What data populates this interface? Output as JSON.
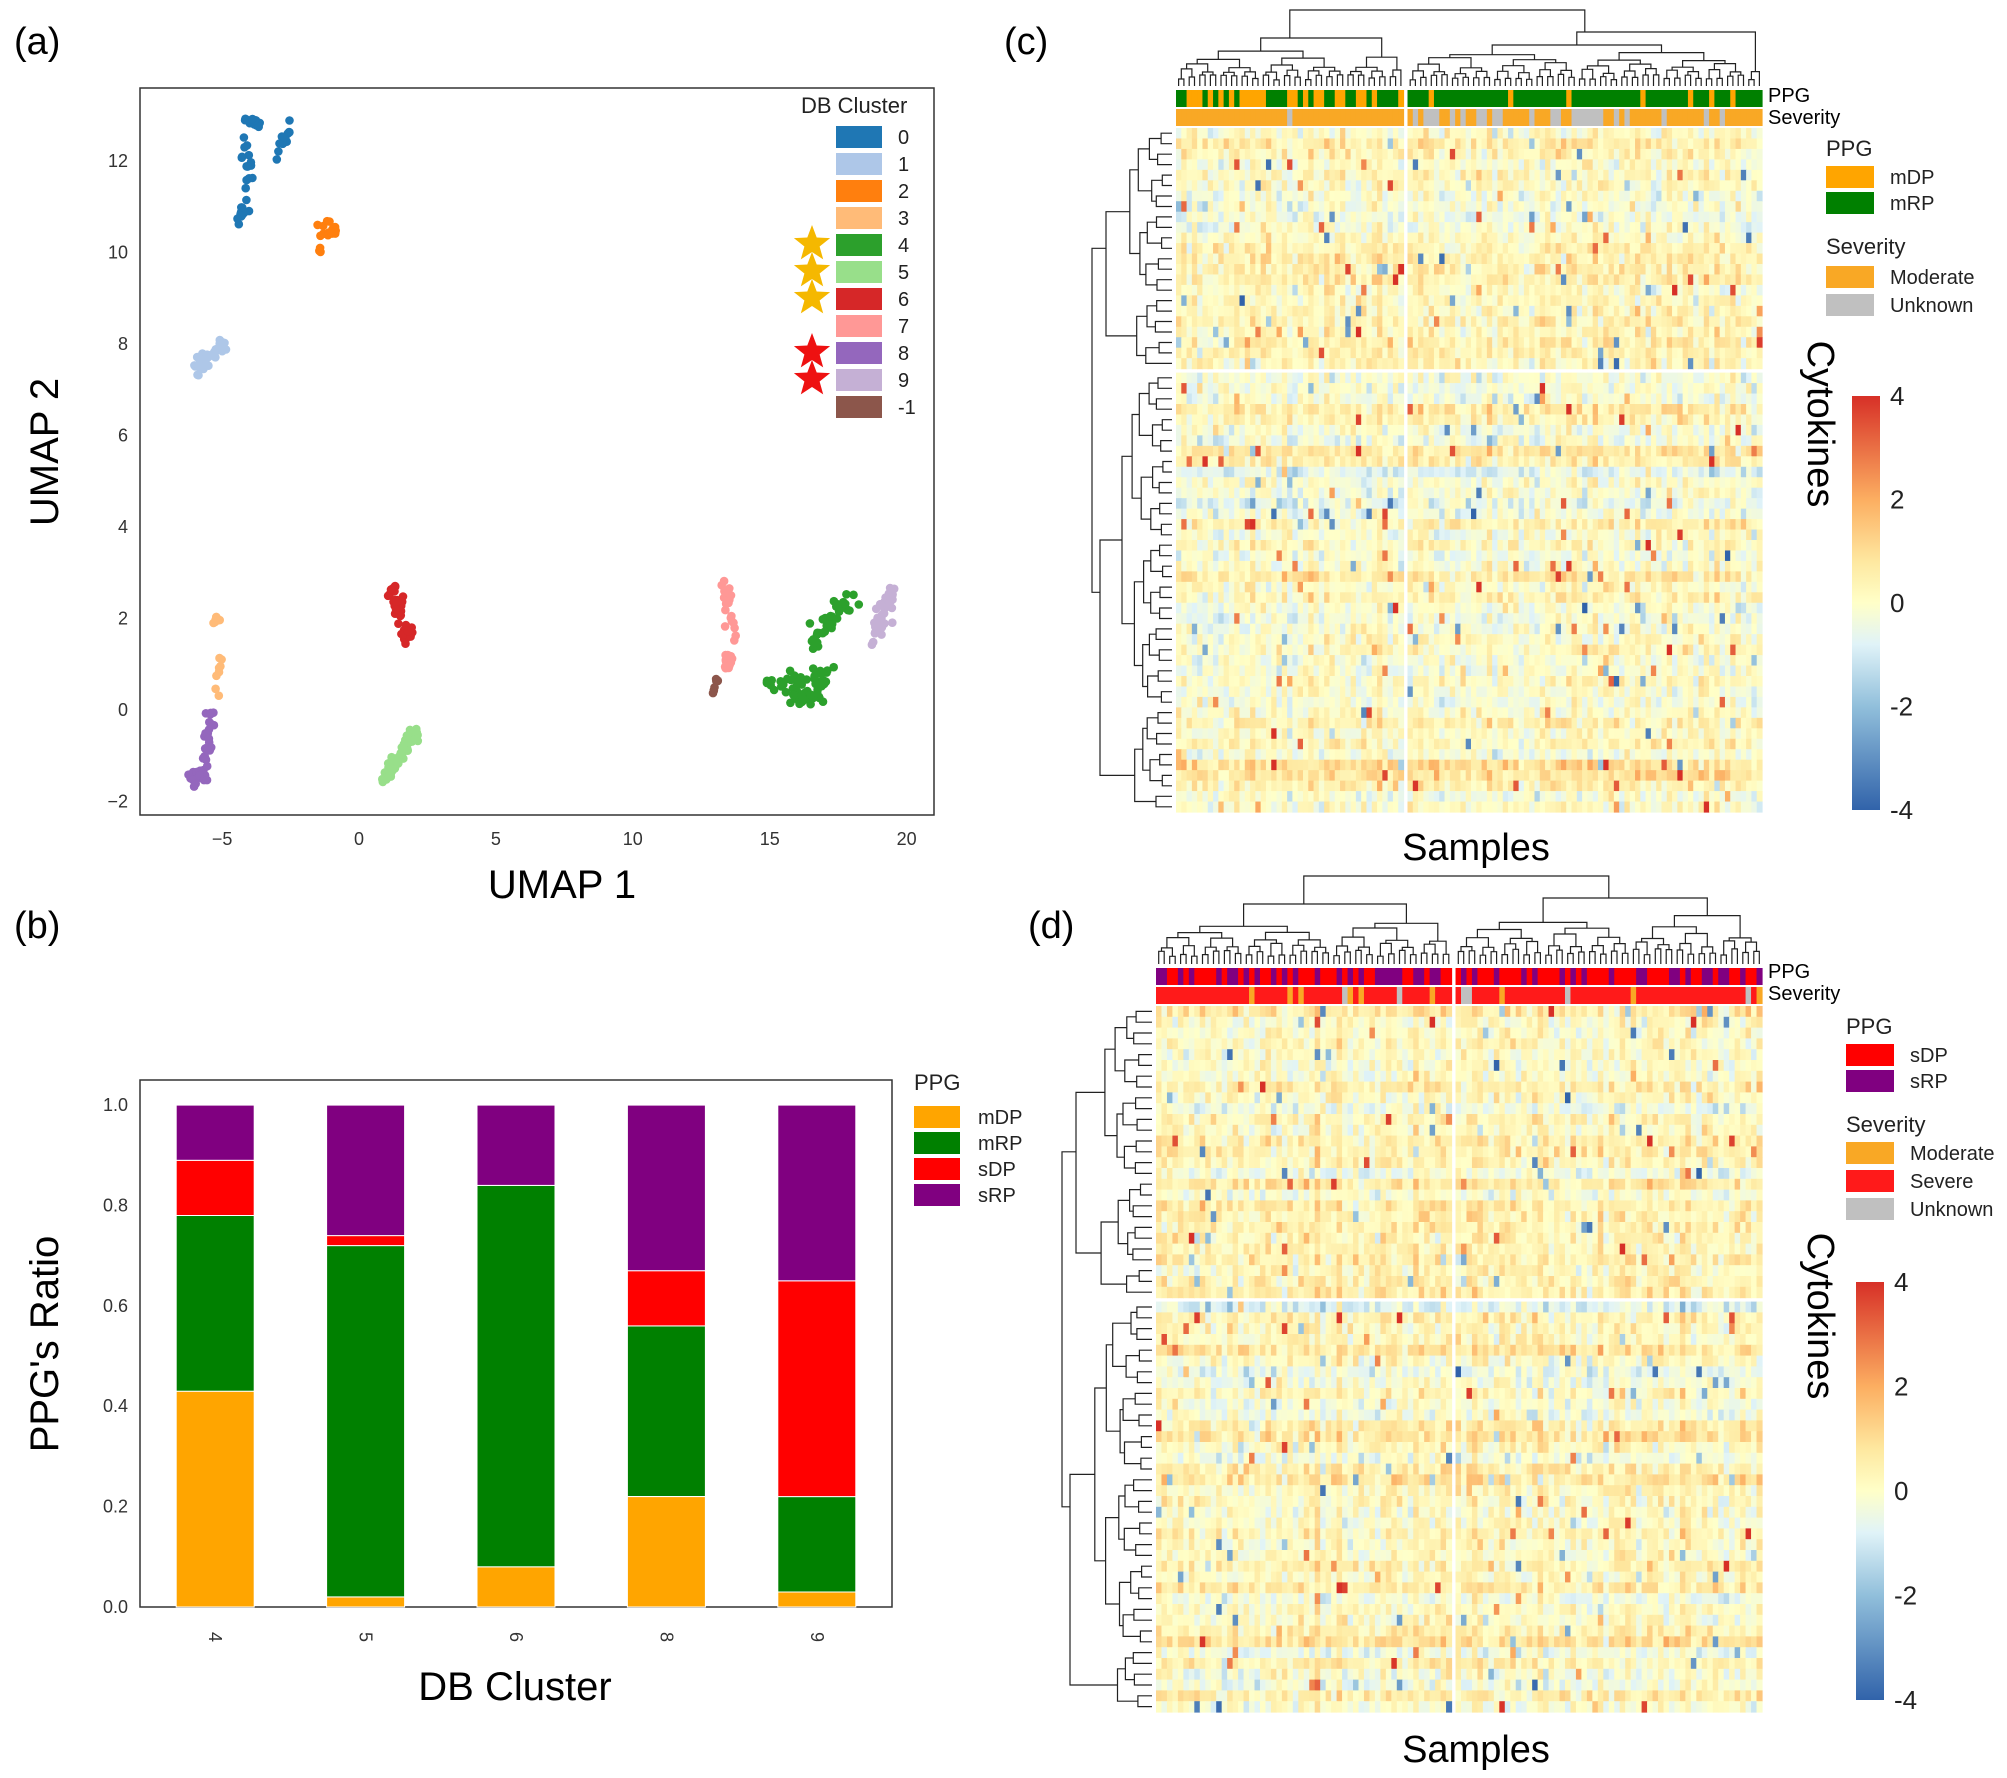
{
  "panels": {
    "a": "(a)",
    "b": "(b)",
    "c": "(c)",
    "d": "(d)"
  },
  "colors": {
    "mDP": "#ffa500",
    "mRP": "#008000",
    "sDP": "#ff0000",
    "sRP": "#800080",
    "Moderate": "#f9a825",
    "Severe": "#ff1a1a",
    "Unknown": "#c0c0c0",
    "gold_star": "#f5b800",
    "red_star": "#ee1111"
  },
  "chart_data": [
    {
      "id": "a",
      "type": "scatter",
      "title": "",
      "xlabel": "UMAP 1",
      "ylabel": "UMAP 2",
      "xlim": [
        -8,
        21
      ],
      "ylim": [
        -2.3,
        13.6
      ],
      "xticks": [
        -5,
        0,
        5,
        10,
        15,
        20
      ],
      "xtick_labels": [
        "−5",
        "0",
        "5",
        "10",
        "15",
        "20"
      ],
      "yticks": [
        -2,
        0,
        2,
        4,
        6,
        8,
        10,
        12
      ],
      "ytick_labels": [
        "−2",
        "0",
        "2",
        "4",
        "6",
        "8",
        "10",
        "12"
      ],
      "legend_title": "DB Cluster",
      "legend_position": "top-right",
      "clusters": [
        {
          "label": "0",
          "color": "#1f77b4",
          "star": "",
          "n": 60,
          "segments": [
            [
              -4.2,
              12.6,
              -4.0,
              11.2,
              0.2
            ],
            [
              -4.1,
              12.9,
              -3.6,
              12.8,
              0.15
            ],
            [
              -2.9,
              12.2,
              -2.6,
              12.7,
              0.15
            ],
            [
              -4.4,
              10.7,
              -4.2,
              11.0,
              0.1
            ]
          ]
        },
        {
          "label": "1",
          "color": "#aec7e8",
          "star": "",
          "n": 40,
          "segments": [
            [
              -6.0,
              7.4,
              -4.9,
              8.0,
              0.18
            ]
          ]
        },
        {
          "label": "2",
          "color": "#ff7f0e",
          "star": "",
          "n": 18,
          "segments": [
            [
              -1.5,
              10.0,
              -1.2,
              10.7,
              0.15
            ],
            [
              -1.1,
              10.4,
              -0.9,
              10.5,
              0.1
            ]
          ]
        },
        {
          "label": "3",
          "color": "#ffbb78",
          "star": "",
          "n": 16,
          "segments": [
            [
              -5.3,
              1.9,
              -5.0,
              2.1,
              0.1
            ],
            [
              -5.2,
              0.2,
              -5.1,
              1.3,
              0.08
            ]
          ]
        },
        {
          "label": "4",
          "color": "#2ca02c",
          "star": "gold",
          "n": 110,
          "segments": [
            [
              15.0,
              0.6,
              17.2,
              0.7,
              0.25
            ],
            [
              16.5,
              1.4,
              18.0,
              2.5,
              0.3
            ],
            [
              15.8,
              0.3,
              17.0,
              0.3,
              0.15
            ]
          ]
        },
        {
          "label": "5",
          "color": "#98df8a",
          "star": "gold",
          "n": 60,
          "segments": [
            [
              0.9,
              -1.5,
              2.1,
              -0.5,
              0.2
            ]
          ]
        },
        {
          "label": "6",
          "color": "#d62728",
          "star": "gold",
          "n": 45,
          "segments": [
            [
              1.2,
              2.7,
              1.8,
              1.5,
              0.2
            ]
          ]
        },
        {
          "label": "7",
          "color": "#ff9896",
          "star": "",
          "n": 45,
          "segments": [
            [
              13.4,
              2.8,
              13.7,
              1.5,
              0.2
            ],
            [
              13.5,
              1.2,
              13.5,
              0.9,
              0.1
            ]
          ]
        },
        {
          "label": "8",
          "color": "#9467bd",
          "star": "red",
          "n": 45,
          "segments": [
            [
              -6.2,
              -1.6,
              -5.6,
              -1.3,
              0.2
            ],
            [
              -5.6,
              -1.0,
              -5.4,
              0.0,
              0.15
            ]
          ]
        },
        {
          "label": "9",
          "color": "#c5b0d5",
          "star": "red",
          "n": 40,
          "segments": [
            [
              18.8,
              1.6,
              19.5,
              2.8,
              0.25
            ]
          ]
        },
        {
          "label": "-1",
          "color": "#8c564b",
          "star": "",
          "n": 8,
          "segments": [
            [
              12.9,
              0.3,
              13.1,
              0.7,
              0.05
            ]
          ]
        }
      ]
    },
    {
      "id": "b",
      "type": "bar",
      "stacked": true,
      "title": "",
      "xlabel": "DB Cluster",
      "ylabel": "PPG's Ratio",
      "ylim": [
        0,
        1.05
      ],
      "yticks": [
        0.0,
        0.2,
        0.4,
        0.6,
        0.8,
        1.0
      ],
      "ytick_labels": [
        "0.0",
        "0.2",
        "0.4",
        "0.6",
        "0.8",
        "1.0"
      ],
      "categories": [
        "4",
        "5",
        "6",
        "8",
        "9"
      ],
      "legend_title": "PPG",
      "legend_position": "outside-right",
      "series": [
        {
          "name": "mDP",
          "color": "#ffa500",
          "values": [
            0.43,
            0.02,
            0.08,
            0.22,
            0.03
          ]
        },
        {
          "name": "mRP",
          "color": "#008000",
          "values": [
            0.35,
            0.7,
            0.76,
            0.34,
            0.19
          ]
        },
        {
          "name": "sDP",
          "color": "#ff0000",
          "values": [
            0.11,
            0.02,
            0.0,
            0.11,
            0.43
          ]
        },
        {
          "name": "sRP",
          "color": "#800080",
          "values": [
            0.11,
            0.26,
            0.16,
            0.33,
            0.35
          ]
        }
      ]
    },
    {
      "id": "c",
      "type": "heatmap",
      "xlabel": "Samples",
      "ylabel": "Cytokines",
      "annotation_rows": [
        "PPG",
        "Severity"
      ],
      "n_cols": 110,
      "n_rows": 65,
      "col_split": 0.39,
      "row_split": 0.35,
      "colorbar_range": [
        -4,
        4
      ],
      "colorbar_ticks": [
        "4",
        "2",
        "0",
        "-2",
        "-4"
      ],
      "legend": {
        "PPG": {
          "title": "PPG",
          "items": [
            {
              "label": "mDP",
              "key": "mDP"
            },
            {
              "label": "mRP",
              "key": "mRP"
            }
          ]
        },
        "Severity": {
          "title": "Severity",
          "items": [
            {
              "label": "Moderate",
              "key": "Moderate"
            },
            {
              "label": "Unknown",
              "key": "Unknown"
            }
          ]
        }
      },
      "group_composition": {
        "left": {
          "PPG": {
            "mDP": 0.6,
            "mRP": 0.4
          },
          "Severity": {
            "Moderate": 0.97,
            "Unknown": 0.03
          }
        },
        "right": {
          "PPG": {
            "mDP": 0.15,
            "mRP": 0.85
          },
          "Severity": {
            "Moderate": 0.62,
            "Unknown": 0.38
          }
        }
      },
      "seed": 11
    },
    {
      "id": "d",
      "type": "heatmap",
      "xlabel": "Samples",
      "ylabel": "Cytokines",
      "annotation_rows": [
        "PPG",
        "Severity"
      ],
      "n_cols": 110,
      "n_rows": 65,
      "col_split": 0.49,
      "row_split": 0.41,
      "colorbar_range": [
        -4,
        4
      ],
      "colorbar_ticks": [
        "4",
        "2",
        "0",
        "-2",
        "-4"
      ],
      "legend": {
        "PPG": {
          "title": "PPG",
          "items": [
            {
              "label": "sDP",
              "key": "sDP"
            },
            {
              "label": "sRP",
              "key": "sRP"
            }
          ]
        },
        "Severity": {
          "title": "Severity",
          "items": [
            {
              "label": "Moderate",
              "key": "Moderate"
            },
            {
              "label": "Severe",
              "key": "Severe"
            },
            {
              "label": "Unknown",
              "key": "Unknown"
            }
          ]
        }
      },
      "group_composition": {
        "left": {
          "PPG": {
            "sDP": 0.6,
            "sRP": 0.4
          },
          "Severity": {
            "Moderate": 0.12,
            "Severe": 0.85,
            "Unknown": 0.03
          }
        },
        "right": {
          "PPG": {
            "sDP": 0.55,
            "sRP": 0.45
          },
          "Severity": {
            "Moderate": 0.08,
            "Severe": 0.9,
            "Unknown": 0.02
          }
        }
      },
      "seed": 29
    }
  ]
}
